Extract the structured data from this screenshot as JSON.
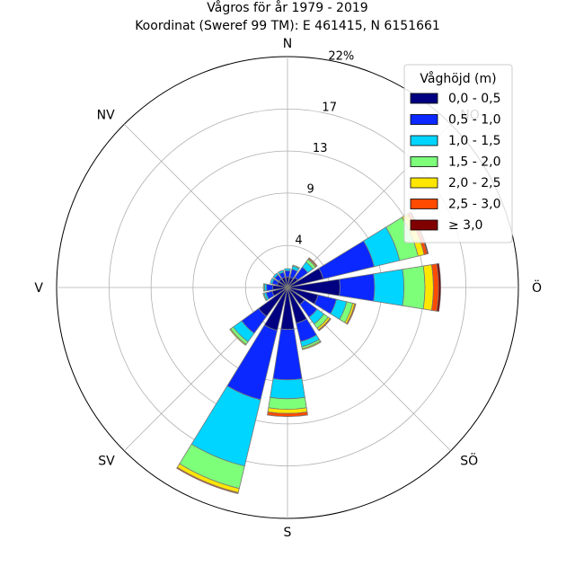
{
  "chart_data": {
    "type": "windrose",
    "title_line1": "Vågros för år 1979 - 2019",
    "title_line2": "Koordinat (Sweref 99 TM): E 461415, N 6151661",
    "directions": [
      "N",
      "NO",
      "Ö",
      "SÖ",
      "S",
      "SV",
      "V",
      "NV"
    ],
    "ring_labels": [
      "4",
      "9",
      "13",
      "17",
      "22%"
    ],
    "rmax": 22,
    "sector_count": 16,
    "legend_title": "Våghöjd (m)",
    "legend_position": "top-right",
    "bins": [
      {
        "label": "0,0 - 0,5",
        "color": "#000080"
      },
      {
        "label": "0,5 - 1,0",
        "color": "#0a28ff"
      },
      {
        "label": "1,0 - 1,5",
        "color": "#00d5ff"
      },
      {
        "label": "1,5 - 2,0",
        "color": "#7dff7a"
      },
      {
        "label": "2,0 - 2,5",
        "color": "#ffe600"
      },
      {
        "label": "2,5 - 3,0",
        "color": "#ff4a00"
      },
      {
        "label": "≥ 3,0",
        "color": "#800000"
      }
    ],
    "sectors": [
      {
        "angle": 0,
        "values": [
          1.0,
          0.6,
          0.2,
          0,
          0,
          0,
          0
        ]
      },
      {
        "angle": 22.5,
        "values": [
          1.0,
          0.8,
          0.3,
          0.1,
          0,
          0,
          0
        ]
      },
      {
        "angle": 45,
        "values": [
          1.2,
          1.2,
          0.6,
          0.3,
          0.1,
          0.1,
          0
        ]
      },
      {
        "angle": 67.5,
        "values": [
          3.5,
          5.0,
          2.5,
          1.8,
          0.6,
          0.3,
          0.1
        ]
      },
      {
        "angle": 90,
        "values": [
          5.0,
          3.3,
          2.8,
          2.0,
          0.8,
          0.5,
          0.2
        ]
      },
      {
        "angle": 112.5,
        "values": [
          3.0,
          1.8,
          1.0,
          0.6,
          0.2,
          0.1,
          0
        ]
      },
      {
        "angle": 135,
        "values": [
          2.0,
          1.5,
          0.8,
          0.5,
          0.2,
          0.1,
          0
        ]
      },
      {
        "angle": 157.5,
        "values": [
          3.5,
          1.8,
          0.5,
          0.2,
          0.1,
          0,
          0
        ]
      },
      {
        "angle": 180,
        "values": [
          4.0,
          4.8,
          1.8,
          1.0,
          0.4,
          0.3,
          0
        ]
      },
      {
        "angle": 202.5,
        "values": [
          4.2,
          6.8,
          6.5,
          2.2,
          0.4,
          0.1,
          0
        ]
      },
      {
        "angle": 225,
        "values": [
          3.4,
          2.0,
          1.0,
          0.3,
          0.1,
          0,
          0
        ]
      },
      {
        "angle": 247.5,
        "values": [
          1.5,
          0.6,
          0.2,
          0.1,
          0,
          0,
          0
        ]
      },
      {
        "angle": 270,
        "values": [
          1.4,
          0.6,
          0.2,
          0.1,
          0,
          0,
          0
        ]
      },
      {
        "angle": 292.5,
        "values": [
          1.0,
          0.5,
          0.2,
          0,
          0,
          0,
          0
        ]
      },
      {
        "angle": 315,
        "values": [
          1.0,
          0.5,
          0.2,
          0,
          0,
          0,
          0
        ]
      },
      {
        "angle": 337.5,
        "values": [
          1.0,
          0.5,
          0.2,
          0,
          0,
          0,
          0
        ]
      }
    ]
  }
}
